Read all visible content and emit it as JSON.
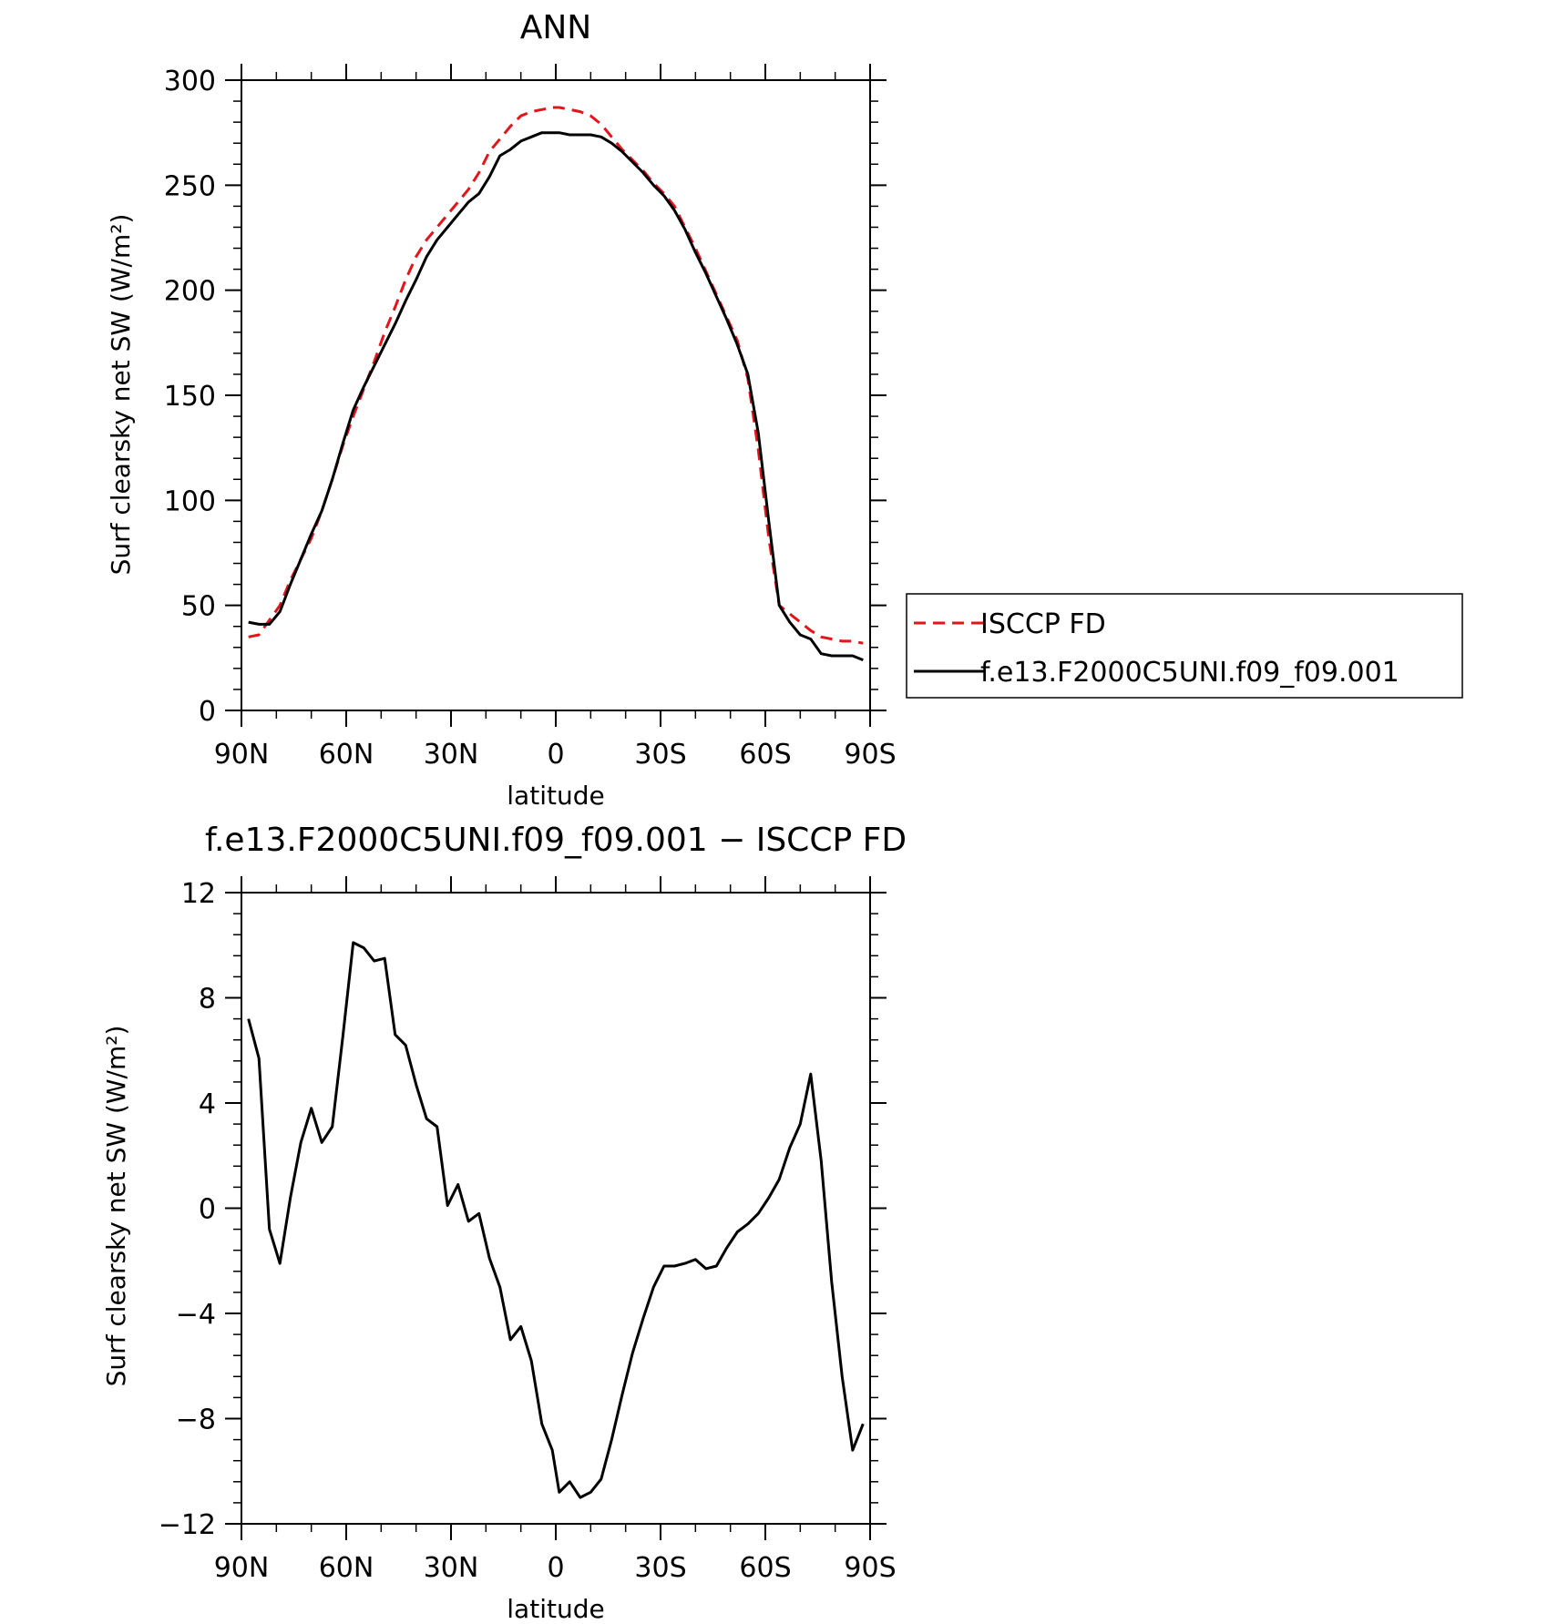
{
  "chart_data": [
    {
      "type": "line",
      "title": "ANN",
      "xlabel": "latitude",
      "ylabel": "Surf clearsky net SW (W/m²)",
      "xlim": [
        -90,
        90
      ],
      "ylim": [
        0,
        300
      ],
      "x_ticks": [
        -90,
        -60,
        -30,
        0,
        30,
        60,
        90
      ],
      "x_tick_labels": [
        "90N",
        "60N",
        "30N",
        "0",
        "30S",
        "60S",
        "90S"
      ],
      "y_ticks": [
        0,
        50,
        100,
        150,
        200,
        250,
        300
      ],
      "y_tick_labels": [
        "0",
        "50",
        "100",
        "150",
        "200",
        "250",
        "300"
      ],
      "legend_position": "right",
      "grid": false,
      "series": [
        {
          "name": "ISCCP FD",
          "color": "#e4141b",
          "dash": "dashed",
          "x": [
            -88,
            -85,
            -82,
            -79,
            -76,
            -73,
            -70,
            -67,
            -64,
            -61,
            -58,
            -55,
            -52,
            -49,
            -46,
            -43,
            -40,
            -37,
            -34,
            -31,
            -28,
            -25,
            -22,
            -19,
            -16,
            -13,
            -10,
            -7,
            -4,
            -1,
            1,
            4,
            7,
            10,
            13,
            16,
            19,
            22,
            25,
            28,
            31,
            34,
            37,
            40,
            43,
            46,
            49,
            52,
            55,
            58,
            61,
            64,
            67,
            70,
            73,
            76,
            79,
            82,
            85,
            88
          ],
          "values": [
            35,
            36,
            43,
            50,
            62,
            72,
            82,
            95,
            110,
            126,
            140,
            153,
            166,
            180,
            192,
            205,
            216,
            224,
            230,
            236,
            242,
            248,
            256,
            266,
            272,
            278,
            283,
            285,
            286,
            287,
            287,
            286,
            285,
            283,
            279,
            273,
            267,
            262,
            257,
            251,
            246,
            240,
            230,
            220,
            209,
            198,
            187,
            176,
            158,
            124,
            82,
            50,
            46,
            42,
            38,
            35,
            34,
            33,
            33,
            32
          ]
        },
        {
          "name": "f.e13.F2000C5UNI.f09_f09.001",
          "color": "#000000",
          "dash": "solid",
          "x": [
            -88,
            -85,
            -82,
            -79,
            -76,
            -73,
            -70,
            -67,
            -64,
            -61,
            -58,
            -55,
            -52,
            -49,
            -46,
            -43,
            -40,
            -37,
            -34,
            -31,
            -28,
            -25,
            -22,
            -19,
            -16,
            -13,
            -10,
            -7,
            -4,
            -1,
            1,
            4,
            7,
            10,
            13,
            16,
            19,
            22,
            25,
            28,
            31,
            34,
            37,
            40,
            43,
            46,
            49,
            52,
            55,
            58,
            61,
            64,
            67,
            70,
            73,
            76,
            79,
            82,
            85,
            88
          ],
          "values": [
            42,
            41,
            41,
            47,
            60,
            72,
            84,
            95,
            110,
            127,
            143,
            154,
            164,
            174,
            184,
            195,
            205,
            216,
            224,
            230,
            236,
            242,
            246,
            254,
            264,
            267,
            271,
            273,
            275,
            275,
            275,
            274,
            274,
            274,
            273,
            270,
            266,
            261,
            256,
            250,
            245,
            238,
            229,
            218,
            208,
            197,
            186,
            174,
            160,
            132,
            90,
            50,
            42,
            36,
            34,
            27,
            26,
            26,
            26,
            24
          ]
        }
      ]
    },
    {
      "type": "line",
      "title": "f.e13.F2000C5UNI.f09_f09.001 − ISCCP FD",
      "xlabel": "latitude",
      "ylabel": "Surf clearsky net SW (W/m²)",
      "xlim": [
        -90,
        90
      ],
      "ylim": [
        -12,
        12
      ],
      "x_ticks": [
        -90,
        -60,
        -30,
        0,
        30,
        60,
        90
      ],
      "x_tick_labels": [
        "90N",
        "60N",
        "30N",
        "0",
        "30S",
        "60S",
        "90S"
      ],
      "y_ticks": [
        -12,
        -8,
        -4,
        0,
        4,
        8,
        12
      ],
      "y_tick_labels": [
        "−12",
        "−8",
        "−4",
        "0",
        "4",
        "8",
        "12"
      ],
      "grid": false,
      "series": [
        {
          "color": "#000000",
          "dash": "solid",
          "x": [
            -88,
            -85,
            -82,
            -79,
            -76,
            -73,
            -70,
            -67,
            -64,
            -61,
            -58,
            -55,
            -52,
            -49,
            -46,
            -43,
            -40,
            -37,
            -34,
            -31,
            -28,
            -25,
            -22,
            -19,
            -16,
            -13,
            -10,
            -7,
            -4,
            -1,
            1,
            4,
            7,
            10,
            13,
            16,
            19,
            22,
            25,
            28,
            31,
            34,
            37,
            40,
            43,
            46,
            49,
            52,
            55,
            58,
            61,
            64,
            67,
            70,
            73,
            76,
            79,
            82,
            85,
            88
          ],
          "values": [
            7.2,
            5.7,
            -0.8,
            -2.1,
            0.4,
            2.5,
            3.8,
            2.5,
            3.1,
            6.5,
            10.1,
            9.9,
            9.4,
            9.5,
            6.6,
            6.2,
            4.7,
            3.4,
            3.1,
            0.1,
            0.9,
            -0.5,
            -0.2,
            -1.9,
            -3.0,
            -5.0,
            -4.5,
            -5.8,
            -8.2,
            -9.2,
            -10.8,
            -10.4,
            -11.0,
            -10.8,
            -10.3,
            -8.8,
            -7.1,
            -5.5,
            -4.2,
            -3.0,
            -2.2,
            -2.2,
            -2.1,
            -1.95,
            -2.3,
            -2.2,
            -1.5,
            -0.9,
            -0.6,
            -0.2,
            0.4,
            1.1,
            2.3,
            3.2,
            5.1,
            1.8,
            -2.8,
            -6.4,
            -9.2,
            -8.2
          ]
        }
      ]
    }
  ]
}
